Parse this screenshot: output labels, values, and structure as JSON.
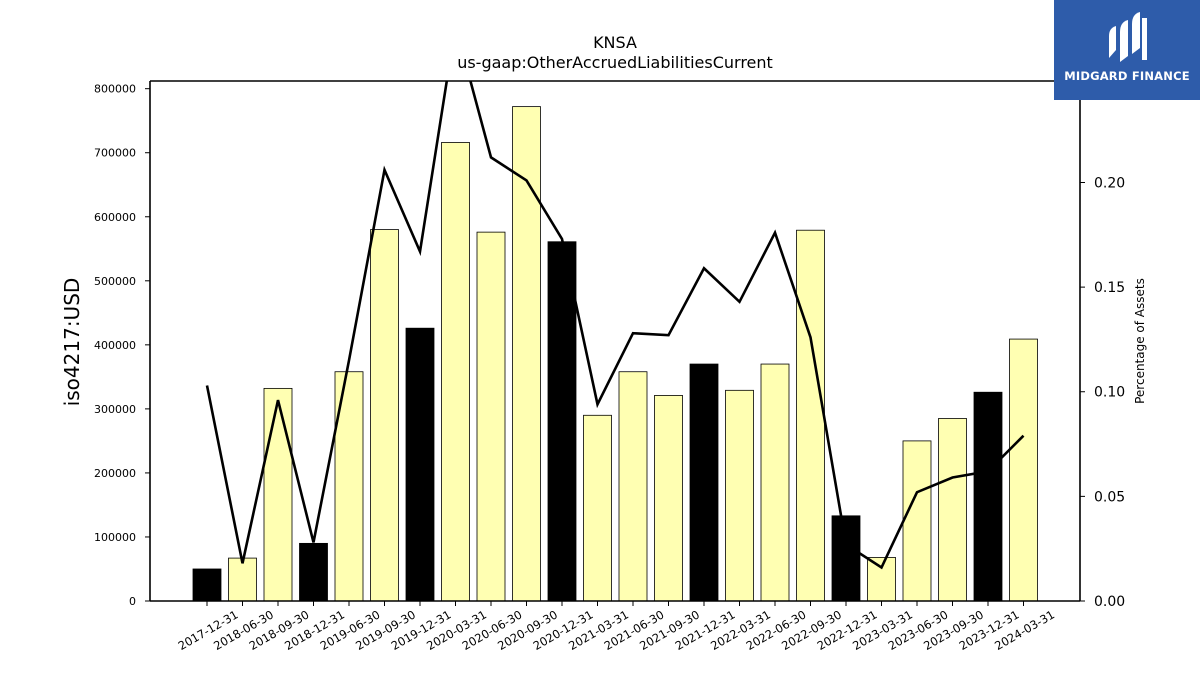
{
  "chart_data": {
    "type": "bar",
    "title": "KNSA",
    "subtitle": "us-gaap:OtherAccruedLiabilitiesCurrent",
    "ylabel": "iso4217:USD",
    "y2label": "Percentage of Assets",
    "ylim": [
      0,
      812000
    ],
    "y2lim": [
      0.0,
      0.2485
    ],
    "yticks": [
      0,
      100000,
      200000,
      300000,
      400000,
      500000,
      600000,
      700000,
      800000
    ],
    "y2ticks": [
      0.0,
      0.05,
      0.1,
      0.15,
      0.2
    ],
    "y2tick_labels": [
      "0.00",
      "0.05",
      "0.10",
      "0.15",
      "0.20"
    ],
    "grid": false,
    "categories": [
      "2017-12-31",
      "2018-06-30",
      "2018-09-30",
      "2018-12-31",
      "2019-06-30",
      "2019-09-30",
      "2019-12-31",
      "2020-03-31",
      "2020-06-30",
      "2020-09-30",
      "2020-12-31",
      "2021-03-31",
      "2021-06-30",
      "2021-09-30",
      "2021-12-31",
      "2022-03-31",
      "2022-06-30",
      "2022-09-30",
      "2022-12-31",
      "2023-03-31",
      "2023-06-30",
      "2023-09-30",
      "2023-12-31",
      "2024-03-31"
    ],
    "series": [
      {
        "kind": "bar",
        "values": [
          50000,
          67000,
          332000,
          90000,
          358000,
          580000,
          426000,
          716000,
          576000,
          772000,
          561000,
          290000,
          358000,
          321000,
          370000,
          329000,
          370000,
          579000,
          133000,
          68000,
          250000,
          285000,
          326000,
          409000
        ],
        "colors": [
          "#000000",
          "#ffffb2",
          "#ffffb2",
          "#000000",
          "#ffffb2",
          "#ffffb2",
          "#000000",
          "#ffffb2",
          "#ffffb2",
          "#ffffb2",
          "#000000",
          "#ffffb2",
          "#ffffb2",
          "#ffffb2",
          "#000000",
          "#ffffb2",
          "#ffffb2",
          "#ffffb2",
          "#000000",
          "#ffffb2",
          "#ffffb2",
          "#ffffb2",
          "#000000",
          "#ffffb2"
        ]
      },
      {
        "kind": "line",
        "axis": "right",
        "color": "#000000",
        "values": [
          0.103,
          0.018,
          0.096,
          0.028,
          0.115,
          0.206,
          0.167,
          0.275,
          0.212,
          0.201,
          0.173,
          0.094,
          0.128,
          0.127,
          0.159,
          0.143,
          0.176,
          0.126,
          0.027,
          0.016,
          0.052,
          0.059,
          0.062,
          0.079
        ]
      }
    ]
  },
  "logo": {
    "text": "MIDGARD FINANCE",
    "color": "#2e5caa"
  }
}
